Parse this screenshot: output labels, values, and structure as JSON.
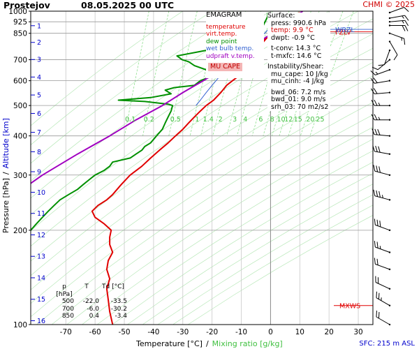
{
  "header": {
    "station": "Prostejov",
    "datetime": "08.05.2025 00 UTC",
    "copyright_prefix": "CHMI",
    "copyright_year": "© 2025",
    "surface_elevation": "SFC: 215 m ASL"
  },
  "legend": {
    "title": "EMAGRAM",
    "items": [
      {
        "label": "temperature",
        "color": "#e00000"
      },
      {
        "label": "virt.temp.",
        "color": "#e00000"
      },
      {
        "label": "dew point",
        "color": "#009000"
      },
      {
        "label": "wet bulb temp.",
        "color": "#3060d0"
      },
      {
        "label": "udpraft v.temp.",
        "color": "#a000c0"
      }
    ],
    "badge": "MU CAPE"
  },
  "stats": {
    "surface_title": "Surface:",
    "press": "press: 990.6 hPa",
    "temp": "temp: 9.9 °C",
    "dwpt": "dwpt: -0.9 °C",
    "tconv": "t-conv: 14.3 °C",
    "tmxfc": "t-mxfc: 14.6 °C",
    "instability_title": "Instability/Shear:",
    "mu_cape": "mu_cape: 10 J/kg",
    "mu_cinh": "mu_cinh: -4 J/kg",
    "bwd_06": "bwd_06: 7.2 m/s",
    "bwd_01": "bwd_01: 9.0 m/s",
    "srh_03": "srh_03: 70 m2/s2"
  },
  "pressure_table": {
    "headers": [
      "p [hPa]",
      "T",
      "Td [°C]"
    ],
    "rows": [
      [
        "500",
        "-22.0",
        "-33.5"
      ],
      [
        "700",
        "-6.0",
        "-30.2"
      ],
      [
        "850",
        "0.4",
        "-3.4"
      ]
    ]
  },
  "chart_data": {
    "type": "line",
    "xlabel": "Temperature [°C]",
    "xlabel_sep": "/",
    "xlabel2": "Mixing ratio [g/kg]",
    "ylabel": "Pressure [hPa]",
    "ylabel_sep": "/",
    "ylabel2": "Altitude [km]",
    "x_ticks": [
      -70,
      -60,
      -50,
      -40,
      -30,
      -20,
      -10,
      0,
      10,
      20,
      30
    ],
    "xlim": [
      -82,
      35
    ],
    "y_ticks": [
      1000,
      925,
      850,
      700,
      600,
      500,
      400,
      300,
      200,
      100
    ],
    "ylim": [
      1000,
      100
    ],
    "y_scale": "log",
    "altitude_km_labels": [
      1,
      2,
      3,
      4,
      5,
      6,
      7,
      8,
      9,
      10,
      11,
      12,
      13,
      14,
      15,
      16
    ],
    "mixing_ratio_labels": [
      0.1,
      0.2,
      0.5,
      1,
      1.4,
      2,
      3,
      4,
      6,
      8,
      10,
      12,
      15,
      20,
      25
    ],
    "level_labels": [
      {
        "text": "MXWS",
        "p": 115
      },
      {
        "text": "FZLV",
        "p": 860
      },
      {
        "text": "WBZL",
        "p": 875
      }
    ],
    "grid": true,
    "series": [
      {
        "name": "temperature",
        "color": "#e00000",
        "points": [
          [
            9.9,
            990
          ],
          [
            7,
            960
          ],
          [
            5,
            930
          ],
          [
            3.5,
            900
          ],
          [
            1,
            860
          ],
          [
            0.4,
            850
          ],
          [
            -1.5,
            820
          ],
          [
            -3,
            790
          ],
          [
            -4.5,
            760
          ],
          [
            -5.5,
            720
          ],
          [
            -6,
            700
          ],
          [
            -7,
            680
          ],
          [
            -9,
            650
          ],
          [
            -11,
            620
          ],
          [
            -13,
            600
          ],
          [
            -15,
            580
          ],
          [
            -17,
            550
          ],
          [
            -19.5,
            520
          ],
          [
            -22,
            500
          ],
          [
            -24,
            480
          ],
          [
            -26,
            460
          ],
          [
            -28,
            440
          ],
          [
            -30,
            420
          ],
          [
            -32.5,
            400
          ],
          [
            -35,
            380
          ],
          [
            -38,
            360
          ],
          [
            -41,
            340
          ],
          [
            -44,
            320
          ],
          [
            -48,
            300
          ],
          [
            -51,
            280
          ],
          [
            -54,
            260
          ],
          [
            -56,
            250
          ],
          [
            -59,
            240
          ],
          [
            -61,
            230
          ],
          [
            -60,
            220
          ],
          [
            -57,
            210
          ],
          [
            -54.5,
            200
          ],
          [
            -55,
            190
          ],
          [
            -55,
            180
          ],
          [
            -54,
            170
          ],
          [
            -55.5,
            160
          ],
          [
            -56,
            150
          ],
          [
            -55,
            140
          ],
          [
            -56,
            130
          ],
          [
            -55.5,
            120
          ],
          [
            -55,
            110
          ],
          [
            -54,
            100
          ]
        ]
      },
      {
        "name": "virt.temp.",
        "color": "#e00000",
        "points": [
          [
            10.2,
            990
          ],
          [
            7.3,
            960
          ],
          [
            5.3,
            930
          ],
          [
            3.8,
            900
          ],
          [
            1.3,
            860
          ],
          [
            0.7,
            850
          ],
          [
            -1.2,
            820
          ],
          [
            -2.7,
            790
          ],
          [
            -4.2,
            760
          ],
          [
            -5.3,
            720
          ],
          [
            -5.8,
            700
          ]
        ]
      },
      {
        "name": "dew point",
        "color": "#009000",
        "points": [
          [
            -0.9,
            990
          ],
          [
            -1,
            960
          ],
          [
            -2,
            920
          ],
          [
            -3,
            880
          ],
          [
            -3.4,
            850
          ],
          [
            -6,
            820
          ],
          [
            -10,
            790
          ],
          [
            -16,
            770
          ],
          [
            -22,
            750
          ],
          [
            -32,
            720
          ],
          [
            -30.2,
            700
          ],
          [
            -28,
            690
          ],
          [
            -26,
            670
          ],
          [
            -22,
            650
          ],
          [
            -18,
            640
          ],
          [
            -14,
            630
          ],
          [
            -20,
            620
          ],
          [
            -24,
            600
          ],
          [
            -26,
            580
          ],
          [
            -33,
            570
          ],
          [
            -36,
            560
          ],
          [
            -34,
            545
          ],
          [
            -41,
            530
          ],
          [
            -52,
            520
          ],
          [
            -43,
            515
          ],
          [
            -35,
            505
          ],
          [
            -33.5,
            500
          ],
          [
            -34,
            480
          ],
          [
            -35,
            460
          ],
          [
            -36,
            440
          ],
          [
            -37,
            420
          ],
          [
            -39,
            400
          ],
          [
            -41,
            380
          ],
          [
            -43,
            370
          ],
          [
            -44,
            360
          ],
          [
            -46,
            350
          ],
          [
            -48,
            340
          ],
          [
            -54,
            330
          ],
          [
            -55,
            320
          ],
          [
            -57,
            310
          ],
          [
            -60,
            300
          ],
          [
            -62,
            290
          ],
          [
            -64,
            280
          ],
          [
            -66,
            270
          ],
          [
            -69,
            260
          ],
          [
            -72,
            250
          ],
          [
            -74,
            240
          ],
          [
            -76,
            230
          ],
          [
            -78,
            220
          ],
          [
            -80,
            210
          ],
          [
            -82,
            200
          ],
          [
            -84,
            195
          ]
        ]
      },
      {
        "name": "wet bulb temp.",
        "color": "#3060d0",
        "points": [
          [
            4.5,
            990
          ],
          [
            3,
            960
          ],
          [
            1.8,
            930
          ],
          [
            0.5,
            900
          ],
          [
            -1.5,
            860
          ],
          [
            -2,
            850
          ],
          [
            -4.5,
            820
          ],
          [
            -6.8,
            790
          ],
          [
            -9,
            760
          ],
          [
            -11,
            730
          ],
          [
            -12,
            700
          ],
          [
            -14,
            670
          ],
          [
            -16,
            640
          ],
          [
            -18,
            610
          ],
          [
            -20,
            580
          ],
          [
            -22,
            550
          ],
          [
            -24,
            520
          ],
          [
            -25.5,
            500
          ]
        ]
      },
      {
        "name": "udpraft v.temp.",
        "color": "#a000c0",
        "points": [
          [
            11,
            1000
          ],
          [
            7,
            940
          ],
          [
            3,
            880
          ],
          [
            -2,
            820
          ],
          [
            -7,
            760
          ],
          [
            -12,
            700
          ],
          [
            -17,
            650
          ],
          [
            -23,
            600
          ],
          [
            -30,
            550
          ],
          [
            -37,
            500
          ],
          [
            -46,
            450
          ],
          [
            -55,
            400
          ],
          [
            -66,
            350
          ],
          [
            -78,
            300
          ],
          [
            -90,
            250
          ]
        ]
      }
    ],
    "wind_barbs": {
      "p": [
        990,
        950,
        925,
        900,
        850,
        800,
        750,
        700,
        650,
        600,
        550,
        500,
        450,
        400,
        350,
        300,
        250,
        200,
        170,
        150,
        130,
        115,
        100
      ],
      "dir_deg": [
        70,
        80,
        85,
        90,
        110,
        150,
        200,
        230,
        250,
        260,
        265,
        270,
        270,
        275,
        280,
        285,
        285,
        290,
        290,
        290,
        295,
        300,
        300
      ],
      "speed_kt": [
        10,
        15,
        15,
        20,
        15,
        10,
        10,
        10,
        15,
        20,
        20,
        25,
        25,
        30,
        30,
        30,
        35,
        30,
        25,
        20,
        20,
        25,
        20
      ]
    }
  }
}
